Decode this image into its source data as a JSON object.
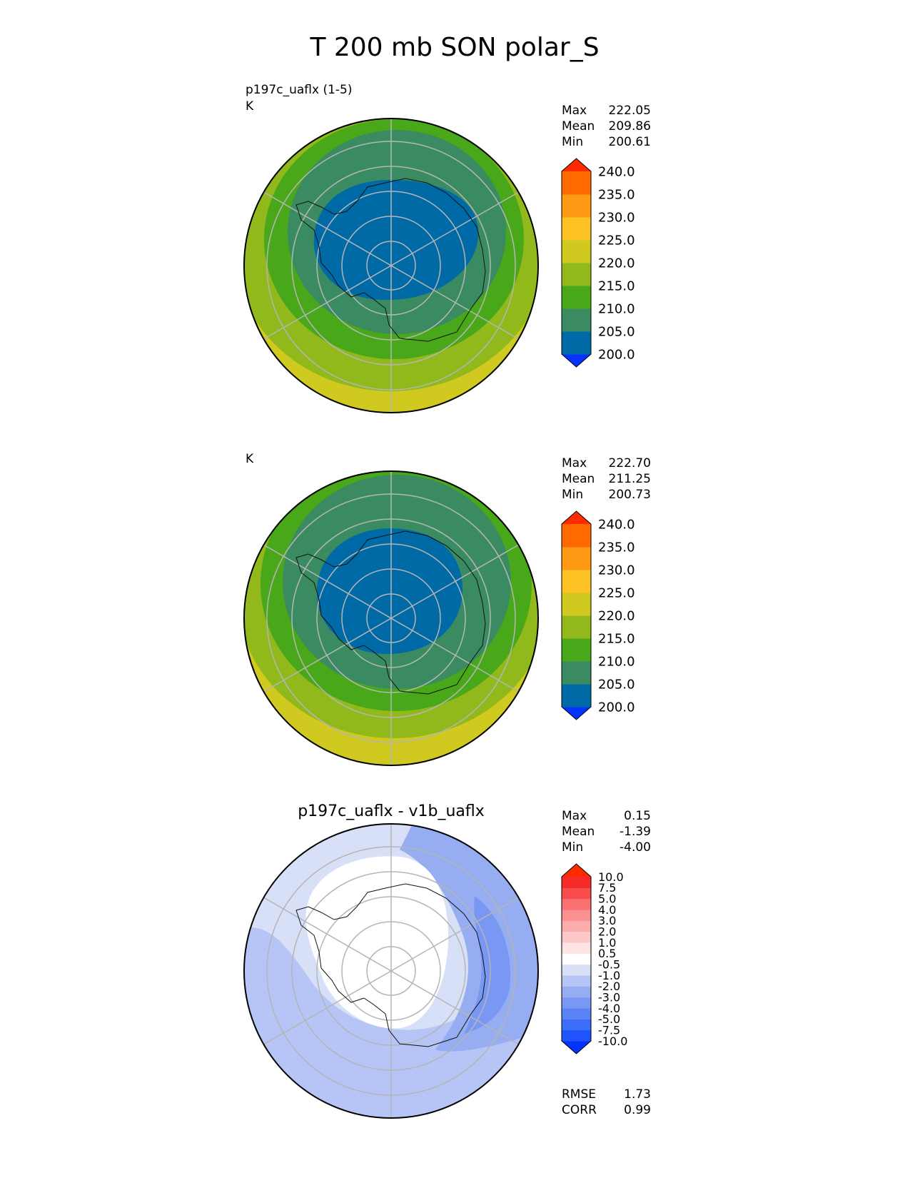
{
  "title": "T 200 mb SON polar_S",
  "chart_data": [
    {
      "type": "heatmap",
      "projection": "south polar stereographic",
      "subtitle": "p197c_uaflx (1-5)",
      "units": "K",
      "stats": {
        "max_label": "Max",
        "max": "222.05",
        "mean_label": "Mean",
        "mean": "209.86",
        "min_label": "Min",
        "min": "200.61"
      },
      "colorbar": {
        "labels": [
          "200.0",
          "205.0",
          "210.0",
          "215.0",
          "220.0",
          "225.0",
          "230.0",
          "235.0",
          "240.0"
        ],
        "colors": [
          "#0433ff",
          "#006aa6",
          "#3a8b62",
          "#49a71a",
          "#91b91b",
          "#cfc920",
          "#fdc223",
          "#fe9a14",
          "#fe6a00",
          "#fe2b00"
        ]
      },
      "levels": [
        {
          "value": 220,
          "color": "#cfc920"
        },
        {
          "value": 215,
          "color": "#91b91b"
        },
        {
          "value": 210,
          "color": "#49a71a"
        },
        {
          "value": 205,
          "color": "#3a8b62"
        },
        {
          "value": 200,
          "color": "#006aa6"
        }
      ]
    },
    {
      "type": "heatmap",
      "projection": "south polar stereographic",
      "subtitle": "",
      "units": "K",
      "stats": {
        "max_label": "Max",
        "max": "222.70",
        "mean_label": "Mean",
        "mean": "211.25",
        "min_label": "Min",
        "min": "200.73"
      },
      "colorbar": {
        "labels": [
          "200.0",
          "205.0",
          "210.0",
          "215.0",
          "220.0",
          "225.0",
          "230.0",
          "235.0",
          "240.0"
        ],
        "colors": [
          "#0433ff",
          "#006aa6",
          "#3a8b62",
          "#49a71a",
          "#91b91b",
          "#cfc920",
          "#fdc223",
          "#fe9a14",
          "#fe6a00",
          "#fe2b00"
        ]
      },
      "levels": [
        {
          "value": 220,
          "color": "#cfc920"
        },
        {
          "value": 215,
          "color": "#91b91b"
        },
        {
          "value": 210,
          "color": "#49a71a"
        },
        {
          "value": 205,
          "color": "#3a8b62"
        },
        {
          "value": 200,
          "color": "#006aa6"
        }
      ]
    },
    {
      "type": "heatmap",
      "projection": "south polar stereographic",
      "subtitle": "p197c_uaflx - v1b_uaflx",
      "units": "",
      "stats": {
        "max_label": "Max",
        "max": "0.15",
        "mean_label": "Mean",
        "mean": "-1.39",
        "min_label": "Min",
        "min": "-4.00"
      },
      "colorbar": {
        "labels": [
          "-10.0",
          "-7.5",
          "-5.0",
          "-4.0",
          "-3.0",
          "-2.0",
          "-1.0",
          "-0.5",
          "0.5",
          "1.0",
          "2.0",
          "3.0",
          "4.0",
          "5.0",
          "7.5",
          "10.0"
        ],
        "colors": [
          "#0433ff",
          "#2055fb",
          "#3c6ef7",
          "#5a84f5",
          "#7898f3",
          "#97adf2",
          "#b6c5f5",
          "#d8e0f8",
          "#ffffff",
          "#fde3e3",
          "#fcc8c8",
          "#fbadad",
          "#fa9090",
          "#f97070",
          "#f84d4d",
          "#f72a2a",
          "#fe2b00"
        ]
      },
      "levels": [
        {
          "value": -1.0,
          "color": "#d8e0f8"
        },
        {
          "value": -2.0,
          "color": "#b6c5f5"
        },
        {
          "value": -3.0,
          "color": "#97adf2"
        },
        {
          "value": -4.0,
          "color": "#7898f3"
        }
      ],
      "metrics": {
        "rmse_label": "RMSE",
        "rmse": "1.73",
        "corr_label": "CORR",
        "corr": "0.99"
      }
    }
  ]
}
